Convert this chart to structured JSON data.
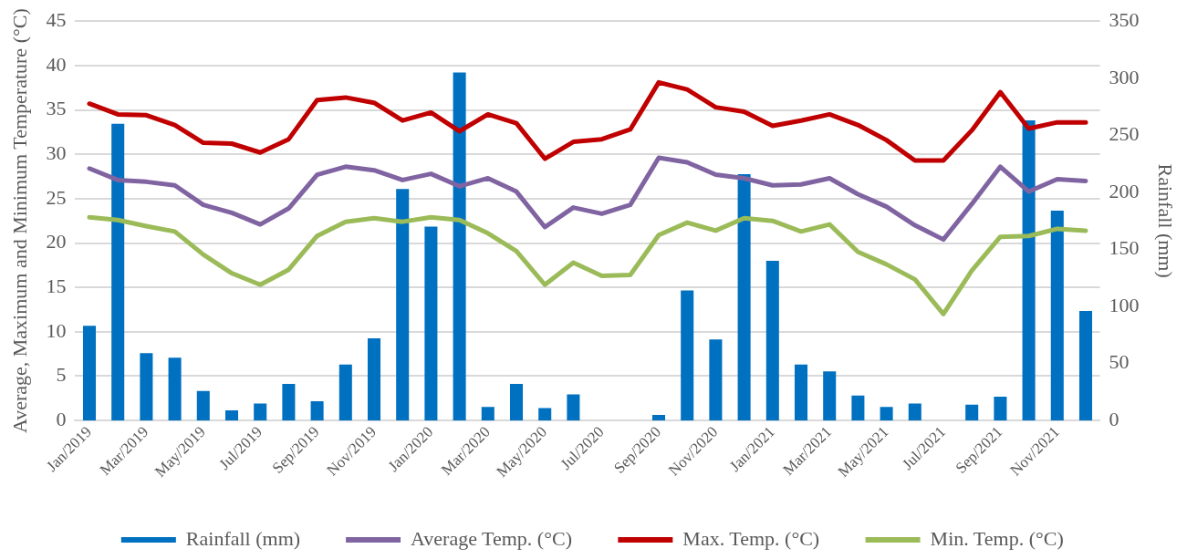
{
  "chart_data": {
    "type": "line",
    "categories": [
      "Jan/2019",
      null,
      "Mar/2019",
      null,
      "May/2019",
      null,
      "Jul/2019",
      null,
      "Sep/2019",
      null,
      "Nov/2019",
      null,
      "Jan/2020",
      null,
      "Mar/2020",
      null,
      "May/2020",
      null,
      "Jul/2020",
      null,
      "Sep/2020",
      null,
      "Nov/2020",
      null,
      "Jan/2021",
      null,
      "Mar/2021",
      null,
      "May/2021",
      null,
      "Jul/2021",
      null,
      "Sep/2021",
      null,
      "Nov/2021",
      null
    ],
    "ylabel": "Average, Maximum and Minimum Temperature (°C)",
    "y2label": "Rainfall (mm)",
    "ylim": [
      0,
      45
    ],
    "yticks": [
      0,
      5,
      10,
      15,
      20,
      25,
      30,
      35,
      40,
      45
    ],
    "y2lim": [
      0,
      350
    ],
    "y2ticks": [
      0,
      50,
      100,
      150,
      200,
      250,
      300,
      350
    ],
    "grid": "y",
    "legend": "bottom",
    "marker": "none",
    "line_style": "solid",
    "series": [
      {
        "name": "Rainfall (mm)",
        "type": "bar",
        "axis": "y2",
        "color": "#0070c0",
        "values": [
          83,
          260,
          59,
          55,
          26,
          9,
          15,
          32,
          17,
          49,
          72,
          203,
          170,
          305,
          12,
          32,
          11,
          23,
          0,
          0,
          5,
          114,
          71,
          216,
          140,
          49,
          43,
          22,
          12,
          15,
          0,
          14,
          21,
          263,
          184,
          96
        ]
      },
      {
        "name": "Average Temp. (°C)",
        "color": "#8064a2",
        "values": [
          28.4,
          27.1,
          26.9,
          26.5,
          24.3,
          23.4,
          22.1,
          23.9,
          27.7,
          28.6,
          28.2,
          27.1,
          27.8,
          26.4,
          27.3,
          25.8,
          21.8,
          24.0,
          23.3,
          24.3,
          29.6,
          29.1,
          27.7,
          27.3,
          26.5,
          26.6,
          27.3,
          25.5,
          24.1,
          22.0,
          20.4,
          24.4,
          28.6,
          25.8,
          27.2,
          27.0
        ]
      },
      {
        "name": "Max. Temp. (°C)",
        "color": "#c00000",
        "values": [
          35.7,
          34.5,
          34.4,
          33.3,
          31.3,
          31.2,
          30.2,
          31.7,
          36.1,
          36.4,
          35.8,
          33.8,
          34.7,
          32.6,
          34.5,
          33.5,
          29.5,
          31.4,
          31.7,
          32.8,
          38.1,
          37.3,
          35.3,
          34.8,
          33.2,
          33.8,
          34.5,
          33.3,
          31.6,
          29.3,
          29.3,
          32.7,
          37.0,
          32.9,
          33.6,
          33.6
        ]
      },
      {
        "name": "Min. Temp. (°C)",
        "color": "#9bbb59",
        "values": [
          22.9,
          22.6,
          21.9,
          21.3,
          18.7,
          16.6,
          15.3,
          17.0,
          20.8,
          22.4,
          22.8,
          22.4,
          22.9,
          22.6,
          21.1,
          19.1,
          15.3,
          17.8,
          16.3,
          16.4,
          20.9,
          22.3,
          21.4,
          22.8,
          22.5,
          21.3,
          22.1,
          19.0,
          17.6,
          15.9,
          12.0,
          16.9,
          20.7,
          20.8,
          21.6,
          21.4
        ]
      }
    ]
  }
}
